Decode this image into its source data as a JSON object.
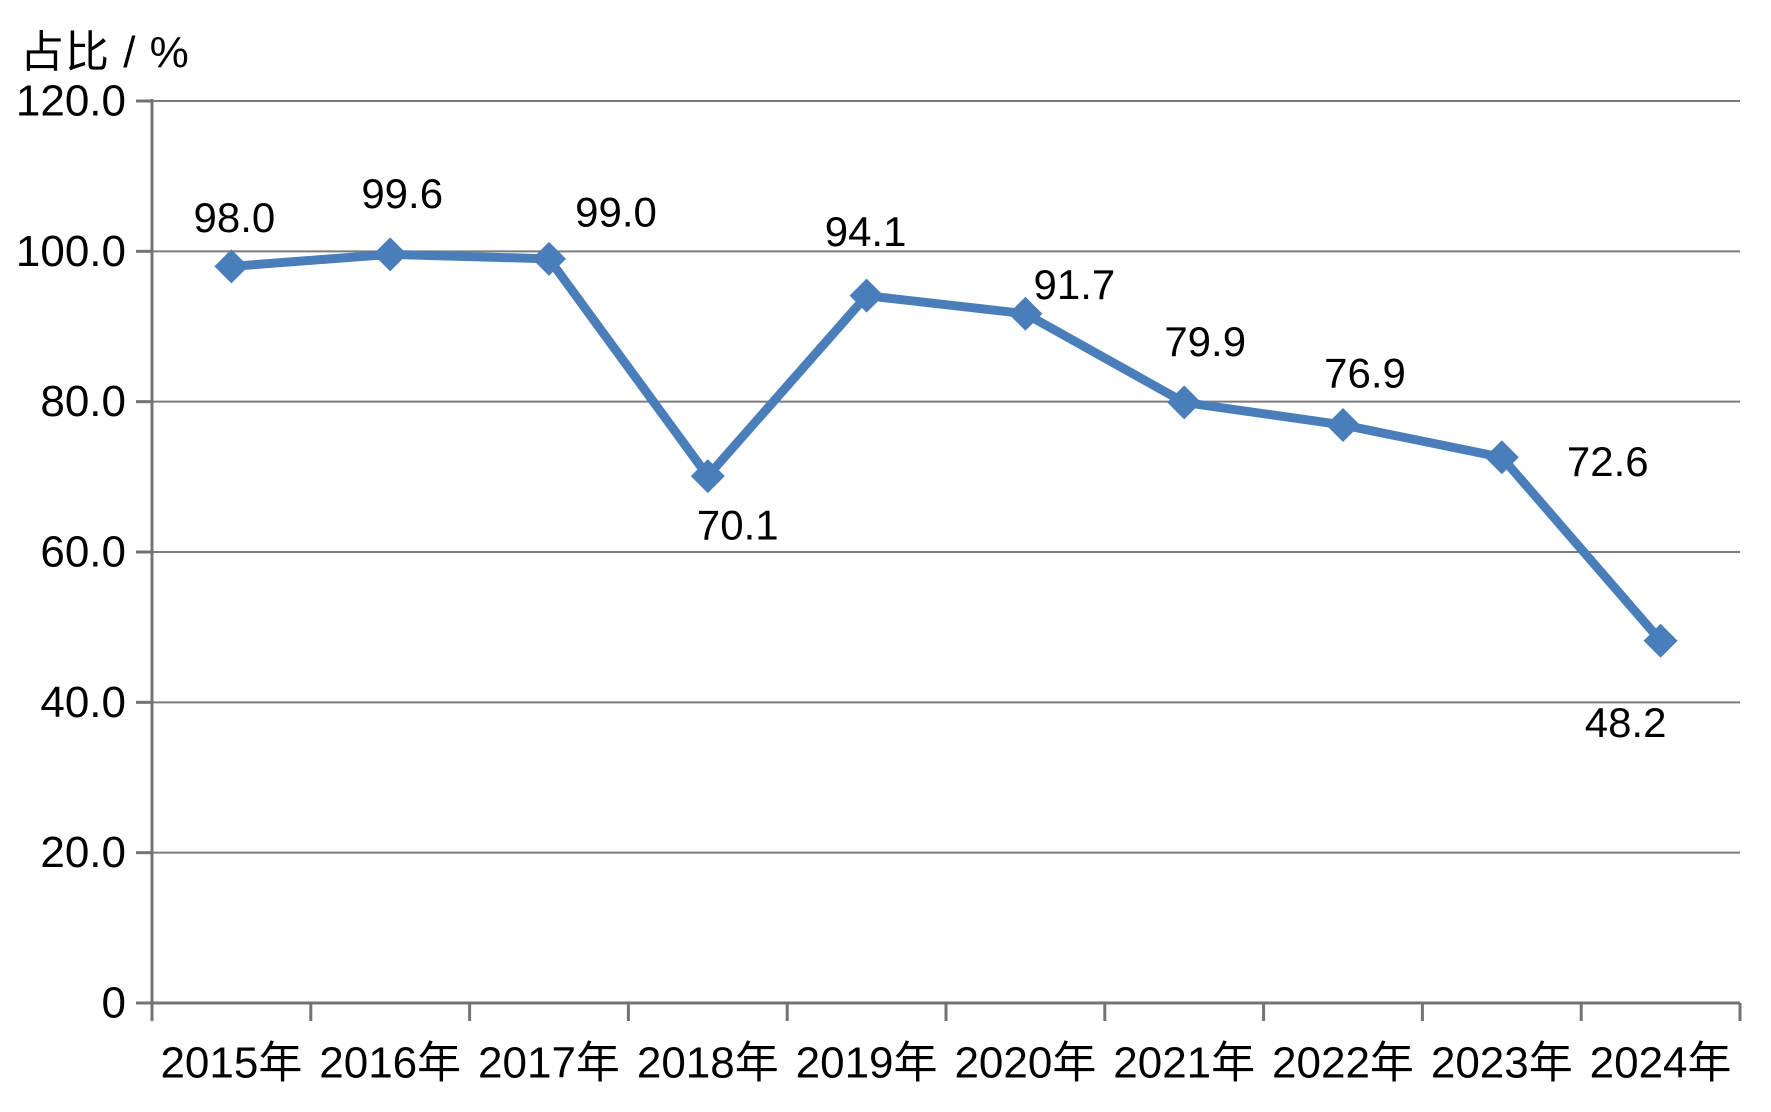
{
  "chart_data": {
    "type": "line",
    "title": "",
    "ylabel": "占比 / %",
    "xlabel": "",
    "categories": [
      "2015年",
      "2016年",
      "2017年",
      "2018年",
      "2019年",
      "2020年",
      "2021年",
      "2022年",
      "2023年",
      "2024年"
    ],
    "series": [
      {
        "name": "占比",
        "values": [
          98.0,
          99.6,
          99.0,
          70.1,
          94.1,
          91.7,
          79.9,
          76.9,
          72.6,
          48.2
        ]
      }
    ],
    "data_labels": [
      "98.0",
      "99.6",
      "99.0",
      "70.1",
      "94.1",
      "91.7",
      "79.9",
      "76.9",
      "72.6",
      "48.2"
    ],
    "label_placements": [
      "above",
      "above",
      "above-right",
      "below-right",
      "above",
      "above-right",
      "above",
      "above",
      "right",
      "below-left"
    ],
    "ylim": [
      0,
      120
    ],
    "ytick_step": 20,
    "ytick_labels": [
      "0",
      "20.0",
      "40.0",
      "60.0",
      "80.0",
      "100.0",
      "120.0"
    ],
    "grid": true,
    "legend": false,
    "marker": "diamond",
    "line_color": "#4a7ebb",
    "gridline_color": "#7b7b7b",
    "axis_color": "#737373",
    "text_color": "#000000",
    "background_color": "#ffffff"
  }
}
